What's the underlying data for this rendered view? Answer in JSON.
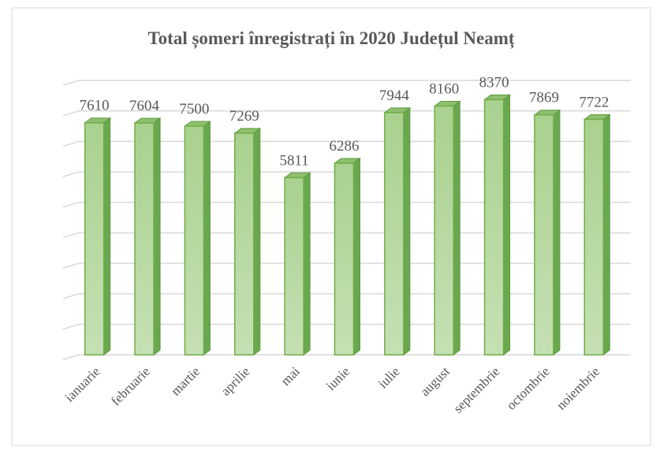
{
  "chart_data": {
    "type": "bar",
    "title": "Total șomeri înregistrați în 2020 Județul Neamț",
    "categories": [
      "ianuarie",
      "februarie",
      "martie",
      "aprilie",
      "mai",
      "iunie",
      "iulie",
      "august",
      "septembrie",
      "octombrie",
      "noiembrie"
    ],
    "values": [
      7610,
      7604,
      7500,
      7269,
      5811,
      6286,
      7944,
      8160,
      8370,
      7869,
      7722
    ],
    "color": "#a9d18e",
    "ylim": [
      0,
      9000
    ],
    "yticks": [
      0,
      1000,
      2000,
      3000,
      4000,
      5000,
      6000,
      7000,
      8000,
      9000
    ],
    "grid": true
  }
}
